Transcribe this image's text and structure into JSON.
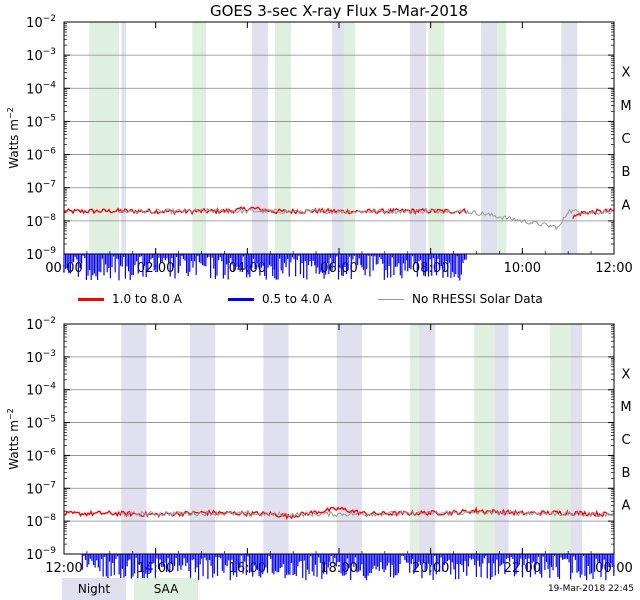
{
  "chart_data": [
    {
      "type": "line",
      "title": "GOES 3-sec X-ray Flux     5-Mar-2018",
      "ylabel": "Watts m-2",
      "yscale": "log",
      "ylim_exponents": [
        -9,
        -2
      ],
      "y_tick_exponents": [
        -9,
        -8,
        -7,
        -6,
        -5,
        -4,
        -3,
        -2
      ],
      "flare_classes": [
        "X",
        "M",
        "C",
        "B",
        "A"
      ],
      "flare_class_exponents": [
        -4,
        -5,
        -6,
        -7,
        -8
      ],
      "xlim_hours": [
        0,
        12
      ],
      "x_ticks": [
        {
          "hour": 0,
          "label": "00:00"
        },
        {
          "hour": 2,
          "label": "02:00"
        },
        {
          "hour": 4,
          "label": "04:00"
        },
        {
          "hour": 6,
          "label": "06:00"
        },
        {
          "hour": 8,
          "label": "08:00"
        },
        {
          "hour": 10,
          "label": "10:00"
        },
        {
          "hour": 12,
          "label": "12:00"
        }
      ],
      "night_intervals": [
        [
          1.25,
          1.35
        ],
        [
          3.0,
          3.1
        ],
        [
          4.1,
          4.45
        ],
        [
          5.85,
          6.25
        ],
        [
          7.55,
          7.9
        ],
        [
          9.1,
          9.45
        ],
        [
          10.85,
          11.2
        ]
      ],
      "saa_intervals": [
        [
          0.55,
          1.2
        ],
        [
          2.8,
          3.1
        ],
        [
          4.6,
          4.95
        ],
        [
          6.1,
          6.35
        ],
        [
          7.95,
          8.3
        ],
        [
          9.45,
          9.65
        ]
      ],
      "series": [
        {
          "name": "1.0 to 8.0 A",
          "color": "#ff0000",
          "segments": [
            {
              "x": [
                0,
                1.2,
                2.5,
                3.6,
                4.1,
                4.6,
                5.5,
                6.5,
                7.5,
                8.6,
                8.8
              ],
              "y_exp": [
                -7.72,
                -7.7,
                -7.72,
                -7.7,
                -7.62,
                -7.72,
                -7.7,
                -7.72,
                -7.7,
                -7.71,
                -7.7
              ]
            },
            {
              "x": [
                11.1,
                11.3,
                12.0
              ],
              "y_exp": [
                -7.9,
                -7.75,
                -7.7
              ]
            }
          ]
        },
        {
          "name": "0.5 to 4.0 A",
          "color": "#0000ff",
          "segments": [
            {
              "x": [
                0,
                1.2,
                2.5,
                3.6,
                4.1,
                4.6,
                5.5,
                6.5,
                7.5,
                8.6,
                8.8
              ],
              "y_exp": [
                -9.3,
                -9.3,
                -9.3,
                -9.3,
                -9.3,
                -9.3,
                -9.3,
                -9.3,
                -9.3,
                -9.3,
                -9.3
              ]
            }
          ]
        },
        {
          "name": "No RHESSI Solar Data",
          "color": "#999999",
          "segments": [
            {
              "x": [
                1.2,
                3.0,
                6.0,
                8.0,
                8.8,
                9.2,
                10.8,
                11.0,
                11.5,
                12.0
              ],
              "y_exp": [
                -7.72,
                -7.7,
                -7.72,
                -7.7,
                -7.72,
                -7.8,
                -8.2,
                -7.7,
                -7.75,
                -7.7
              ]
            }
          ]
        }
      ]
    },
    {
      "type": "line",
      "title": "",
      "ylabel": "Watts m-2",
      "yscale": "log",
      "ylim_exponents": [
        -9,
        -2
      ],
      "y_tick_exponents": [
        -9,
        -8,
        -7,
        -6,
        -5,
        -4,
        -3,
        -2
      ],
      "flare_classes": [
        "X",
        "M",
        "C",
        "B",
        "A"
      ],
      "flare_class_exponents": [
        -4,
        -5,
        -6,
        -7,
        -8
      ],
      "xlim_hours": [
        12,
        24
      ],
      "x_ticks": [
        {
          "hour": 12,
          "label": "12:00"
        },
        {
          "hour": 14,
          "label": "14:00"
        },
        {
          "hour": 16,
          "label": "16:00"
        },
        {
          "hour": 18,
          "label": "18:00"
        },
        {
          "hour": 20,
          "label": "20:00"
        },
        {
          "hour": 22,
          "label": "22:00"
        },
        {
          "hour": 24,
          "label": "00:00"
        }
      ],
      "night_intervals": [
        [
          13.25,
          13.8
        ],
        [
          14.75,
          15.3
        ],
        [
          16.35,
          16.9
        ],
        [
          17.95,
          18.5
        ],
        [
          19.55,
          20.1
        ],
        [
          21.15,
          21.7
        ],
        [
          22.75,
          23.3
        ]
      ],
      "saa_intervals": [
        [
          19.55,
          19.75
        ],
        [
          20.95,
          21.4
        ],
        [
          22.6,
          23.05
        ]
      ],
      "series": [
        {
          "name": "1.0 to 8.0 A",
          "color": "#ff0000",
          "segments": [
            {
              "x": [
                12.0,
                13.0,
                14.0,
                15.0,
                16.5,
                16.9,
                18.0,
                18.6,
                19.5,
                20.5,
                21.0,
                22.0,
                23.0,
                24.0
              ],
              "y_exp": [
                -7.78,
                -7.76,
                -7.8,
                -7.74,
                -7.78,
                -7.85,
                -7.62,
                -7.78,
                -7.76,
                -7.74,
                -7.68,
                -7.76,
                -7.74,
                -7.8
              ]
            }
          ]
        },
        {
          "name": "0.5 to 4.0 A",
          "color": "#0000ff",
          "segments": [
            {
              "x": [
                12.4,
                13.4,
                15.0,
                16.3,
                18.6,
                19.6,
                21.2,
                22.6,
                24.0
              ],
              "y_exp": [
                -9.3,
                -9.3,
                -9.3,
                -9.3,
                -9.3,
                -9.3,
                -9.3,
                -9.3,
                -9.3
              ]
            }
          ]
        },
        {
          "name": "No RHESSI Solar Data",
          "color": "#999999",
          "segments": [
            {
              "x": [
                13.2,
                14.0,
                15.2,
                16.5,
                18.5,
                20.0,
                21.5,
                23.0,
                24.0
              ],
              "y_exp": [
                -7.78,
                -7.78,
                -7.76,
                -7.8,
                -7.78,
                -7.76,
                -7.74,
                -7.78,
                -7.8
              ]
            }
          ]
        }
      ]
    }
  ],
  "legend": [
    {
      "label": "1.0 to 8.0 A",
      "color": "#ff0000"
    },
    {
      "label": "0.5 to 4.0 A",
      "color": "#0000ff"
    },
    {
      "label": "No RHESSI Solar Data",
      "color": "#999999"
    }
  ],
  "key": {
    "night_label": "Night",
    "night_color": "#e0e0ee",
    "saa_label": "SAA",
    "saa_color": "#e0f0e0"
  },
  "timestamp": "19-Mar-2018 22:45"
}
